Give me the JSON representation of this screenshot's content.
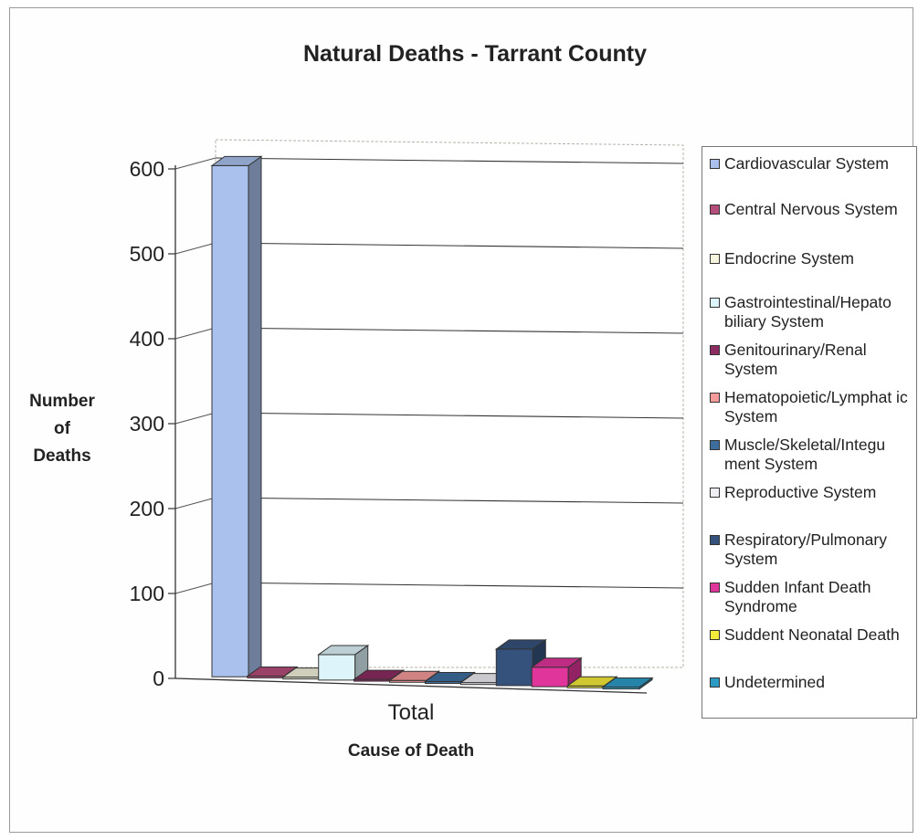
{
  "chart_data": {
    "type": "bar",
    "title": "Natural Deaths - Tarrant County",
    "xlabel": "Cause of Death",
    "ylabel": "Number of Deaths",
    "categories": [
      "Total"
    ],
    "ylim": [
      0,
      600
    ],
    "yticks": [
      "0",
      "100",
      "200",
      "300",
      "400",
      "500",
      "600"
    ],
    "grid": true,
    "legend_position": "right",
    "series": [
      {
        "name": "Cardiovascular System",
        "values": [
          602
        ],
        "color": "#a9c1ec"
      },
      {
        "name": "Central Nervous System",
        "values": [
          2
        ],
        "color": "#b54d7a"
      },
      {
        "name": "Endocrine System",
        "values": [
          2
        ],
        "color": "#f5f4dc"
      },
      {
        "name": "Gastrointestinal/Hepatobiliary System",
        "values": [
          30
        ],
        "color": "#dcf4fa"
      },
      {
        "name": "Genitourinary/Renal System",
        "values": [
          1
        ],
        "color": "#8c2c62"
      },
      {
        "name": "Hematopoietic/Lymphatic System",
        "values": [
          1
        ],
        "color": "#f49a9a"
      },
      {
        "name": "Muscle/Skeletal/Integument System",
        "values": [
          1
        ],
        "color": "#3d6e9e"
      },
      {
        "name": "Reproductive System",
        "values": [
          1
        ],
        "color": "#eeeef2"
      },
      {
        "name": "Respiratory/Pulmonary System",
        "values": [
          43
        ],
        "color": "#35527c"
      },
      {
        "name": "Sudden Infant Death Syndrome",
        "values": [
          23
        ],
        "color": "#e0359a"
      },
      {
        "name": "Suddent Neonatal Death",
        "values": [
          2
        ],
        "color": "#f5ea3a"
      },
      {
        "name": "Undetermined",
        "values": [
          2
        ],
        "color": "#2c9bc4"
      }
    ]
  },
  "legend": {
    "items": [
      {
        "text": "Cardiovascular System",
        "color": "#a9c1ec"
      },
      {
        "text": "Central Nervous System",
        "color": "#b54d7a"
      },
      {
        "text": "Endocrine System",
        "color": "#f5f4dc"
      },
      {
        "text": "Gastrointestinal/Hepato biliary System",
        "color": "#dcf4fa"
      },
      {
        "text": "Genitourinary/Renal System",
        "color": "#8c2c62"
      },
      {
        "text": "Hematopoietic/Lymphat ic System",
        "color": "#f49a9a"
      },
      {
        "text": "Muscle/Skeletal/Integu ment System",
        "color": "#3d6e9e"
      },
      {
        "text": "Reproductive System",
        "color": "#eeeef2"
      },
      {
        "text": "Respiratory/Pulmonary System",
        "color": "#35527c"
      },
      {
        "text": "Sudden Infant Death Syndrome",
        "color": "#e0359a"
      },
      {
        "text": "Suddent Neonatal Death",
        "color": "#f5ea3a"
      },
      {
        "text": "Undetermined",
        "color": "#2c9bc4"
      }
    ]
  },
  "labels": {
    "ylabel_line1": "Number",
    "ylabel_line2": "of",
    "ylabel_line3": "Deaths"
  }
}
